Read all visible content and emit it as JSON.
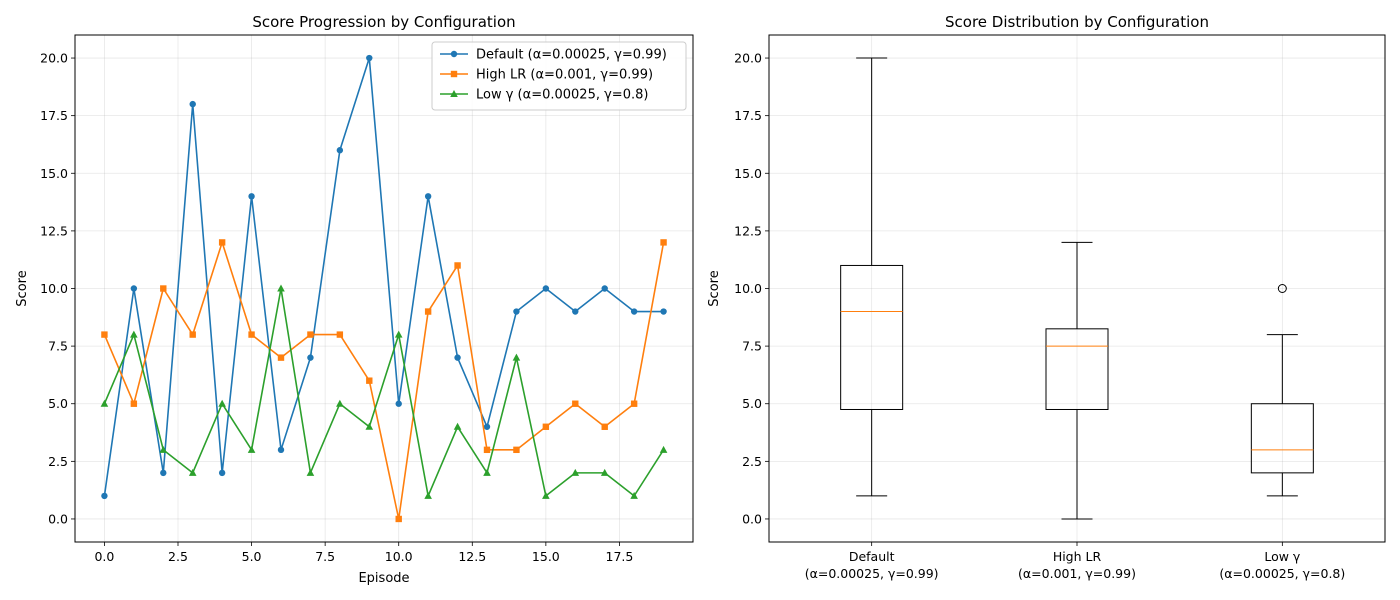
{
  "chart_data": [
    {
      "type": "line",
      "title": "Score Progression by Configuration",
      "xlabel": "Episode",
      "ylabel": "Score",
      "xlim": [
        -1,
        20
      ],
      "ylim": [
        -1,
        21
      ],
      "xticks": [
        0,
        2.5,
        5,
        7.5,
        10,
        12.5,
        15,
        17.5
      ],
      "xtick_labels": [
        "0.0",
        "2.5",
        "5.0",
        "7.5",
        "10.0",
        "12.5",
        "15.0",
        "17.5"
      ],
      "yticks": [
        0,
        2.5,
        5,
        7.5,
        10,
        12.5,
        15,
        17.5,
        20
      ],
      "ytick_labels": [
        "0.0",
        "2.5",
        "5.0",
        "7.5",
        "10.0",
        "12.5",
        "15.0",
        "17.5",
        "20.0"
      ],
      "grid": true,
      "legend": "top-right",
      "x": [
        0,
        1,
        2,
        3,
        4,
        5,
        6,
        7,
        8,
        9,
        10,
        11,
        12,
        13,
        14,
        15,
        16,
        17,
        18,
        19
      ],
      "series": [
        {
          "name": "Default (α=0.00025, γ=0.99)",
          "color": "#1f77b4",
          "marker": "circle",
          "values": [
            1,
            10,
            2,
            18,
            2,
            14,
            3,
            7,
            16,
            20,
            5,
            14,
            7,
            4,
            9,
            10,
            9,
            10,
            9,
            9
          ]
        },
        {
          "name": "High LR (α=0.001, γ=0.99)",
          "color": "#ff7f0e",
          "marker": "square",
          "values": [
            8,
            5,
            10,
            8,
            12,
            8,
            7,
            8,
            8,
            6,
            0,
            9,
            11,
            3,
            3,
            4,
            5,
            4,
            5,
            12
          ]
        },
        {
          "name": "Low γ (α=0.00025, γ=0.8)",
          "color": "#2ca02c",
          "marker": "triangle",
          "values": [
            5,
            8,
            3,
            2,
            5,
            3,
            10,
            2,
            5,
            4,
            8,
            1,
            4,
            2,
            7,
            1,
            2,
            2,
            1,
            3
          ]
        }
      ]
    },
    {
      "type": "box",
      "title": "Score Distribution by Configuration",
      "ylabel": "Score",
      "ylim": [
        -1,
        21
      ],
      "yticks": [
        0,
        2.5,
        5,
        7.5,
        10,
        12.5,
        15,
        17.5,
        20
      ],
      "ytick_labels": [
        "0.0",
        "2.5",
        "5.0",
        "7.5",
        "10.0",
        "12.5",
        "15.0",
        "17.5",
        "20.0"
      ],
      "grid": true,
      "median_color": "#ff7f0e",
      "boxes": [
        {
          "label_line1": "Default",
          "label_line2": "(α=0.00025, γ=0.99)",
          "whisker_low": 1,
          "q1": 4.75,
          "median": 9,
          "q3": 11,
          "whisker_high": 20,
          "outliers": []
        },
        {
          "label_line1": "High LR",
          "label_line2": "(α=0.001, γ=0.99)",
          "whisker_low": 0,
          "q1": 4.75,
          "median": 7.5,
          "q3": 8.25,
          "whisker_high": 12,
          "outliers": []
        },
        {
          "label_line1": "Low γ",
          "label_line2": "(α=0.00025, γ=0.8)",
          "whisker_low": 1,
          "q1": 2,
          "median": 3,
          "q3": 5,
          "whisker_high": 8,
          "outliers": [
            10
          ]
        }
      ]
    }
  ]
}
